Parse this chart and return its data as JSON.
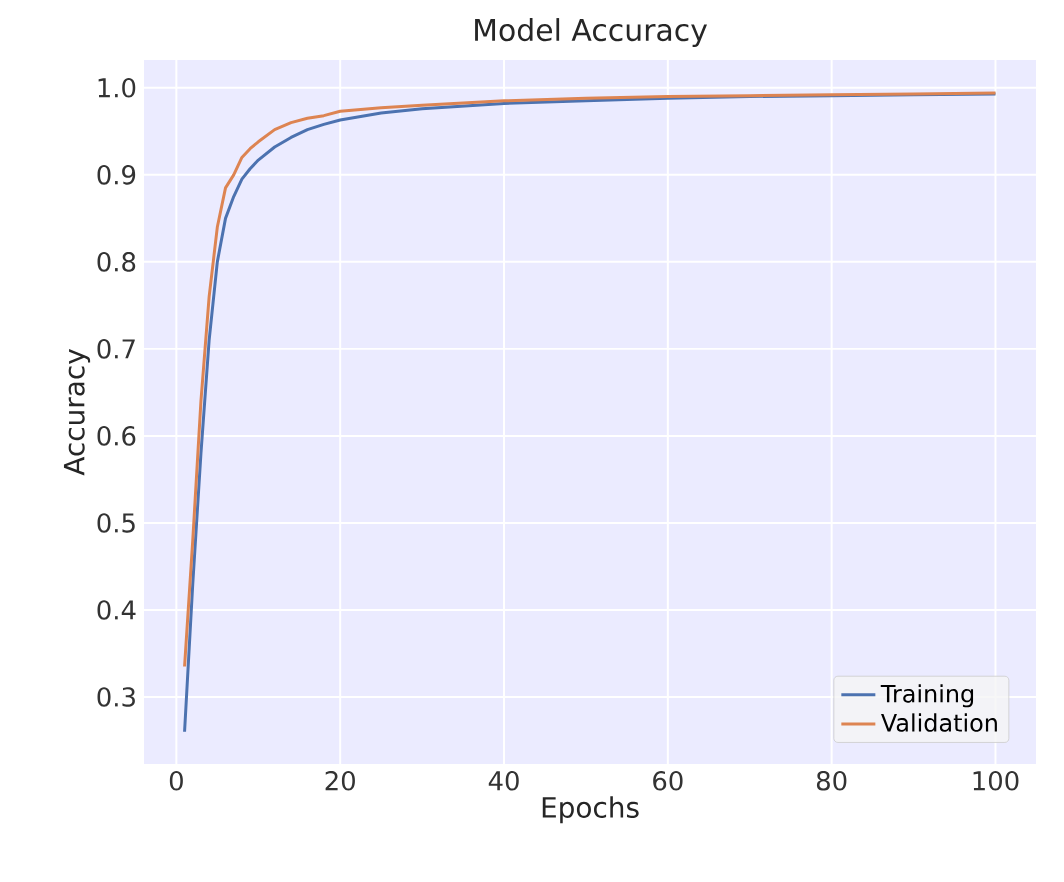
{
  "chart_data": {
    "type": "line",
    "title": "Model Accuracy",
    "xlabel": "Epochs",
    "ylabel": "Accuracy",
    "xlim": [
      -3.95,
      104.95
    ],
    "xticks": [
      0,
      20,
      40,
      60,
      80,
      100
    ],
    "ylim": [
      0.223,
      1.032
    ],
    "yticks": [
      {
        "value": 0.3,
        "label": "0.3"
      },
      {
        "value": 0.4,
        "label": "0.4"
      },
      {
        "value": 0.5,
        "label": "0.5"
      },
      {
        "value": 0.6,
        "label": "0.6"
      },
      {
        "value": 0.7,
        "label": "0.7"
      },
      {
        "value": 0.8,
        "label": "0.8"
      },
      {
        "value": 0.9,
        "label": "0.9"
      },
      {
        "value": 1.0,
        "label": "1.0"
      }
    ],
    "grid": true,
    "legend": "bottom right",
    "marker": "none",
    "line_style": "solid",
    "x": [
      1,
      2,
      3,
      4,
      5,
      6,
      7,
      8,
      9,
      10,
      12,
      14,
      16,
      18,
      20,
      25,
      30,
      40,
      50,
      60,
      70,
      80,
      90,
      100
    ],
    "series": [
      {
        "name": "Training",
        "color": "#4c72b0",
        "values": [
          0.26,
          0.43,
          0.58,
          0.71,
          0.8,
          0.85,
          0.875,
          0.895,
          0.907,
          0.917,
          0.932,
          0.943,
          0.952,
          0.958,
          0.963,
          0.971,
          0.976,
          0.982,
          0.985,
          0.988,
          0.99,
          0.991,
          0.992,
          0.993
        ]
      },
      {
        "name": "Validation",
        "color": "#dd8452",
        "values": [
          0.335,
          0.48,
          0.64,
          0.76,
          0.84,
          0.885,
          0.9,
          0.92,
          0.93,
          0.938,
          0.952,
          0.96,
          0.965,
          0.968,
          0.973,
          0.977,
          0.98,
          0.985,
          0.988,
          0.99,
          0.991,
          0.992,
          0.993,
          0.994
        ]
      }
    ]
  }
}
